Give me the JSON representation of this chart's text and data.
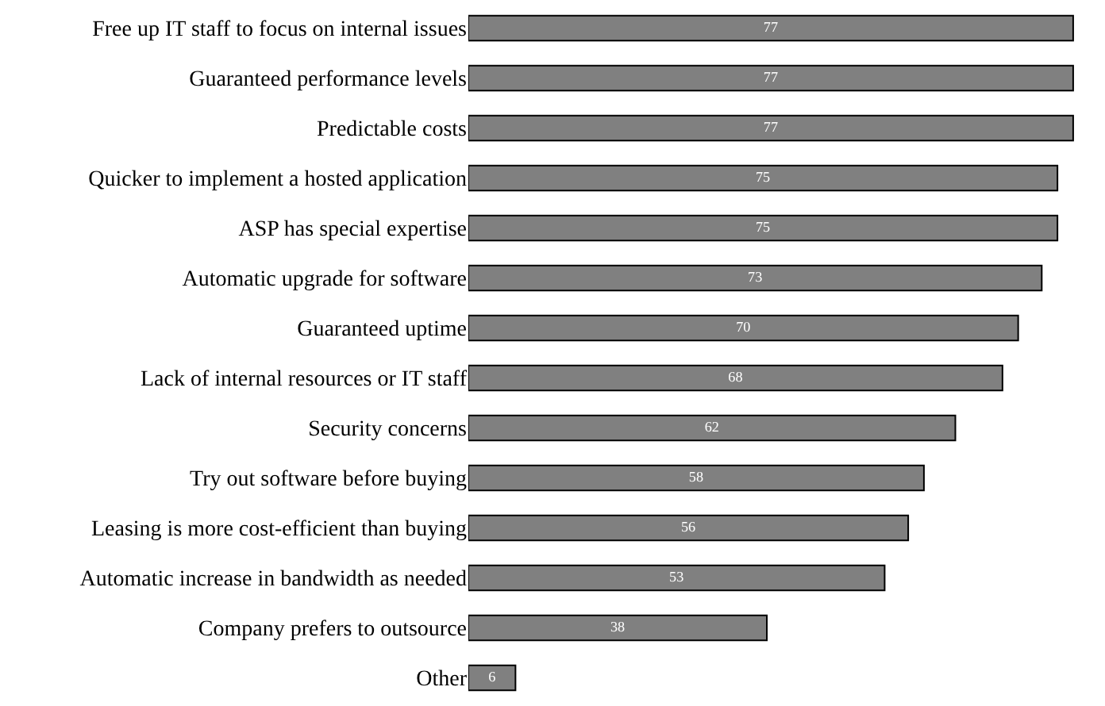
{
  "chart_data": {
    "type": "bar",
    "orientation": "horizontal",
    "data_labels": true,
    "categories": [
      "Free up IT staff to focus on internal issues",
      "Guaranteed performance levels",
      "Predictable costs",
      "Quicker to implement a hosted application",
      "ASP has special expertise",
      "Automatic upgrade for software",
      "Guaranteed uptime",
      "Lack of internal resources or IT staff",
      "Security concerns",
      "Try out software before buying",
      "Leasing is more cost-efficient than buying",
      "Automatic increase in bandwidth as needed",
      "Company prefers to outsource",
      "Other"
    ],
    "values": [
      77,
      77,
      77,
      75,
      75,
      73,
      70,
      68,
      62,
      58,
      56,
      53,
      38,
      6
    ],
    "color": "#808080"
  }
}
